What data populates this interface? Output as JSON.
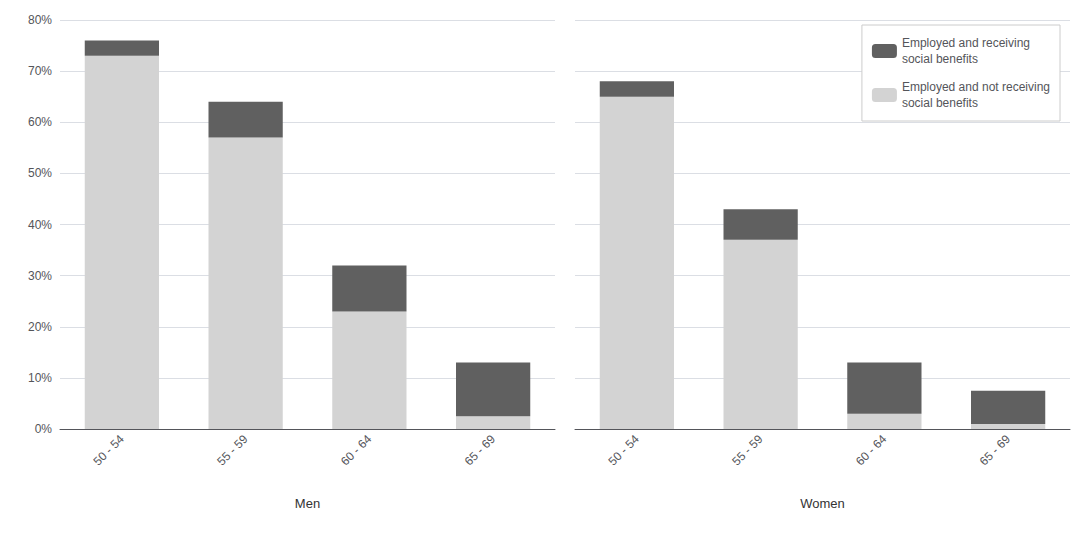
{
  "chart_data": {
    "type": "bar",
    "stacked": true,
    "categories": [
      "50 - 54",
      "55 - 59",
      "60 - 64",
      "65 - 69",
      "50 - 54",
      "55 - 59",
      "60 - 64",
      "65 - 69"
    ],
    "annotations": [
      "Men",
      "Women"
    ],
    "series": [
      {
        "name": "Employed and not receiving\nsocial benefits",
        "color": "#d3d3d3",
        "values": [
          73,
          57,
          23,
          2.5,
          65,
          37,
          3,
          1.0
        ]
      },
      {
        "name": "Employed and receiving\nsocial benefits",
        "color": "#606060",
        "values": [
          3,
          7,
          9,
          10.5,
          3,
          6,
          10,
          6.5
        ]
      }
    ],
    "ylim": [
      0,
      80
    ],
    "yticks": [
      {
        "value": 0,
        "label": "0%"
      },
      {
        "value": 10,
        "label": "10%"
      },
      {
        "value": 20,
        "label": "20%"
      },
      {
        "value": 30,
        "label": "30%"
      },
      {
        "value": 40,
        "label": "40%"
      },
      {
        "value": 50,
        "label": "50%"
      },
      {
        "value": 60,
        "label": "60%"
      },
      {
        "value": 70,
        "label": "70%"
      },
      {
        "value": 80,
        "label": "80%"
      }
    ],
    "grid": true,
    "legend": "upper right"
  }
}
